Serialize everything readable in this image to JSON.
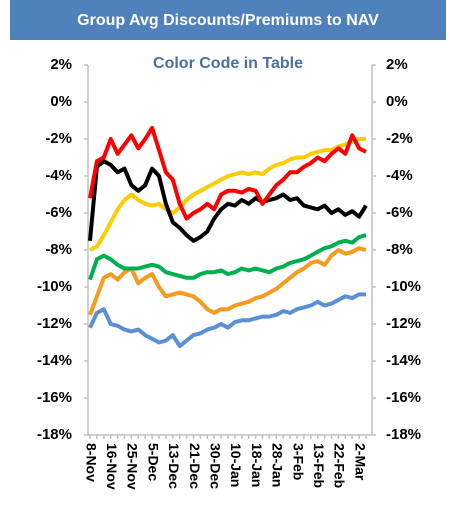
{
  "chart_data": {
    "type": "line",
    "title": "Group Avg Discounts/Premiums to NAV",
    "subtitle": "Color Code in Table",
    "categories": [
      "8-Nov",
      null,
      null,
      "16-Nov",
      null,
      null,
      "25-Nov",
      null,
      null,
      "5-Dec",
      null,
      null,
      "13-Dec",
      null,
      null,
      "21-Dec",
      null,
      null,
      "30-Dec",
      null,
      null,
      "10-Jan",
      null,
      null,
      "18-Jan",
      null,
      null,
      "28-Jan",
      null,
      null,
      "3-Feb",
      null,
      null,
      "13-Feb",
      null,
      null,
      "22-Feb",
      null,
      null,
      "2-Mar",
      null
    ],
    "series": [
      {
        "color": "#ff0000",
        "values": [
          -5.2,
          -3.2,
          -3.0,
          -2.0,
          -2.8,
          -2.3,
          -1.8,
          -2.5,
          -2.0,
          -1.4,
          -2.6,
          -3.8,
          -4.2,
          -5.5,
          -6.3,
          -6.0,
          -5.8,
          -5.5,
          -5.8,
          -5.0,
          -4.8,
          -4.8,
          -4.9,
          -4.7,
          -4.8,
          -5.5,
          -5.0,
          -4.5,
          -4.2,
          -3.8,
          -3.8,
          -3.5,
          -3.3,
          -3.0,
          -3.2,
          -2.8,
          -2.5,
          -2.8,
          -1.8,
          -2.5,
          -2.7
        ]
      },
      {
        "color": "#000000",
        "values": [
          -7.5,
          -3.5,
          -3.2,
          -3.4,
          -3.8,
          -3.6,
          -4.5,
          -4.8,
          -4.5,
          -3.6,
          -4.0,
          -5.5,
          -6.5,
          -6.8,
          -7.2,
          -7.5,
          -7.3,
          -7.0,
          -6.3,
          -5.8,
          -5.5,
          -5.6,
          -5.3,
          -5.5,
          -5.2,
          -5.4,
          -5.3,
          -5.2,
          -5.0,
          -5.3,
          -5.2,
          -5.6,
          -5.7,
          -5.8,
          -5.6,
          -6.0,
          -5.8,
          -6.1,
          -5.9,
          -6.2,
          -5.6
        ]
      },
      {
        "color": "#ffcc00",
        "values": [
          -8.0,
          -7.8,
          -7.2,
          -6.5,
          -5.8,
          -5.3,
          -5.0,
          -5.3,
          -5.5,
          -5.6,
          -5.5,
          -5.8,
          -6.0,
          -5.7,
          -5.3,
          -5.0,
          -4.8,
          -4.6,
          -4.4,
          -4.2,
          -4.0,
          -3.9,
          -3.8,
          -3.9,
          -3.8,
          -3.9,
          -3.6,
          -3.4,
          -3.3,
          -3.1,
          -3.0,
          -3.0,
          -2.8,
          -2.7,
          -2.6,
          -2.6,
          -2.4,
          -2.3,
          -2.1,
          -2.0,
          -2.0
        ]
      },
      {
        "color": "#00b050",
        "values": [
          -9.6,
          -8.5,
          -8.3,
          -8.5,
          -8.8,
          -9.0,
          -9.0,
          -9.0,
          -8.9,
          -8.8,
          -8.9,
          -9.2,
          -9.3,
          -9.4,
          -9.5,
          -9.5,
          -9.3,
          -9.2,
          -9.2,
          -9.1,
          -9.3,
          -9.2,
          -9.0,
          -9.1,
          -9.0,
          -9.1,
          -9.2,
          -9.0,
          -8.9,
          -8.7,
          -8.6,
          -8.5,
          -8.3,
          -8.1,
          -7.9,
          -7.8,
          -7.6,
          -7.5,
          -7.6,
          -7.3,
          -7.2
        ]
      },
      {
        "color": "#f79a1e",
        "values": [
          -11.5,
          -10.5,
          -9.5,
          -9.3,
          -9.6,
          -9.2,
          -9.0,
          -9.8,
          -9.5,
          -9.3,
          -10.0,
          -10.5,
          -10.4,
          -10.3,
          -10.4,
          -10.5,
          -10.8,
          -11.2,
          -11.4,
          -11.2,
          -11.2,
          -11.0,
          -10.9,
          -10.8,
          -10.6,
          -10.5,
          -10.3,
          -10.1,
          -9.8,
          -9.5,
          -9.2,
          -9.0,
          -8.7,
          -8.6,
          -8.8,
          -8.3,
          -8.0,
          -8.2,
          -8.1,
          -7.9,
          -8.0
        ]
      },
      {
        "color": "#5b8fd6",
        "values": [
          -12.2,
          -11.4,
          -11.2,
          -12.0,
          -12.1,
          -12.3,
          -12.4,
          -12.3,
          -12.6,
          -12.8,
          -13.0,
          -12.9,
          -12.6,
          -13.2,
          -12.9,
          -12.6,
          -12.5,
          -12.3,
          -12.2,
          -12.0,
          -12.2,
          -11.9,
          -11.8,
          -11.8,
          -11.7,
          -11.6,
          -11.6,
          -11.5,
          -11.3,
          -11.4,
          -11.2,
          -11.1,
          -11.0,
          -10.8,
          -11.0,
          -10.9,
          -10.7,
          -10.5,
          -10.6,
          -10.4,
          -10.4
        ]
      }
    ],
    "ylim": [
      -18,
      2
    ],
    "yticks": [
      {
        "value": 2,
        "label": "2%"
      },
      {
        "value": 0,
        "label": "0%"
      },
      {
        "value": -2,
        "label": "-2%"
      },
      {
        "value": -4,
        "label": "-4%"
      },
      {
        "value": -6,
        "label": "-6%"
      },
      {
        "value": -8,
        "label": "-8%"
      },
      {
        "value": -10,
        "label": "-10%"
      },
      {
        "value": -12,
        "label": "-12%"
      },
      {
        "value": -14,
        "label": "-14%"
      },
      {
        "value": -16,
        "label": "-16%"
      },
      {
        "value": -18,
        "label": "-18%"
      }
    ],
    "y2lim": [
      -18,
      2
    ],
    "y2ticks": [
      {
        "value": 2,
        "label": "2%"
      },
      {
        "value": 0,
        "label": "0%"
      },
      {
        "value": -2,
        "label": "-2%"
      },
      {
        "value": -4,
        "label": "-4%"
      },
      {
        "value": -6,
        "label": "-6%"
      },
      {
        "value": -8,
        "label": "-8%"
      },
      {
        "value": -10,
        "label": "-10%"
      },
      {
        "value": -12,
        "label": "-12%"
      },
      {
        "value": -14,
        "label": "-14%"
      },
      {
        "value": -16,
        "label": "-16%"
      },
      {
        "value": -18,
        "label": "-18%"
      }
    ],
    "grid": false
  }
}
